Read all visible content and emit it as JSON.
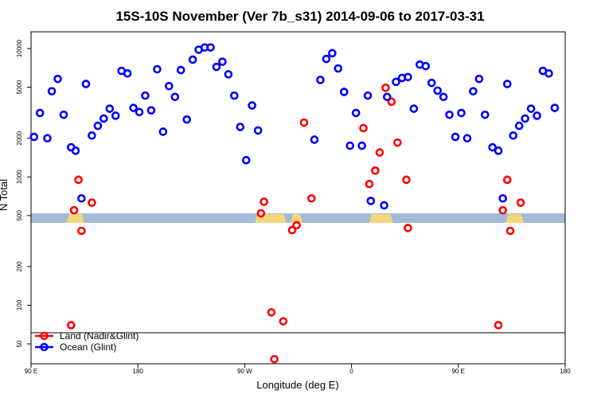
{
  "chart_data": {
    "type": "scatter",
    "title": "15S-10S November (Ver 7b_s31)   2014-09-06 to 2017-03-31",
    "xlabel": "Longitude (deg E)",
    "ylabel": "N Total",
    "y_scale": "log",
    "xlim": [
      90,
      450
    ],
    "ylim": [
      35,
      13500
    ],
    "x_ticks": [
      {
        "value": 90,
        "label": "90 E"
      },
      {
        "value": 162,
        "label": "180"
      },
      {
        "value": 234,
        "label": "90 W"
      },
      {
        "value": 306,
        "label": "0"
      },
      {
        "value": 378,
        "label": "90 E"
      },
      {
        "value": 450,
        "label": "180"
      }
    ],
    "y_ticks": [
      {
        "value": 50,
        "label": "50"
      },
      {
        "value": 100,
        "label": "100"
      },
      {
        "value": 200,
        "label": "200"
      },
      {
        "value": 500,
        "label": "500"
      },
      {
        "value": 1000,
        "label": "1000"
      },
      {
        "value": 2000,
        "label": "2000"
      },
      {
        "value": 5000,
        "label": "5000"
      },
      {
        "value": 10000,
        "label": "10000"
      }
    ],
    "grid": false,
    "legend_position": "bottom-left",
    "series": [
      {
        "name": "Land (Nadir&Glint)",
        "color": "#ff0000",
        "points": [
          [
            117,
            70
          ],
          [
            119,
            550
          ],
          [
            122,
            950
          ],
          [
            124,
            380
          ],
          [
            131,
            630
          ],
          [
            245,
            520
          ],
          [
            247,
            640
          ],
          [
            252,
            88
          ],
          [
            254,
            38
          ],
          [
            260,
            75
          ],
          [
            266,
            385
          ],
          [
            269,
            420
          ],
          [
            274,
            2650
          ],
          [
            279,
            680
          ],
          [
            314,
            2400
          ],
          [
            318,
            880
          ],
          [
            322,
            1120
          ],
          [
            325,
            1550
          ],
          [
            329,
            4950
          ],
          [
            333,
            3850
          ],
          [
            337,
            1850
          ],
          [
            343,
            950
          ],
          [
            344,
            400
          ],
          [
            405,
            70
          ],
          [
            408,
            550
          ],
          [
            411,
            950
          ],
          [
            413,
            380
          ],
          [
            420,
            630
          ]
        ]
      },
      {
        "name": "Ocean (Glint)",
        "color": "#0000ff",
        "points": [
          [
            92,
            2050
          ],
          [
            96,
            3150
          ],
          [
            101,
            2000
          ],
          [
            104,
            4650
          ],
          [
            108,
            5800
          ],
          [
            112,
            3050
          ],
          [
            117,
            1700
          ],
          [
            120,
            1600
          ],
          [
            124,
            680
          ],
          [
            127,
            5300
          ],
          [
            131,
            2100
          ],
          [
            135,
            2500
          ],
          [
            139,
            2850
          ],
          [
            143,
            3400
          ],
          [
            147,
            3000
          ],
          [
            151,
            6700
          ],
          [
            155,
            6400
          ],
          [
            159,
            3450
          ],
          [
            163,
            3200
          ],
          [
            167,
            4300
          ],
          [
            171,
            3300
          ],
          [
            175,
            6900
          ],
          [
            179,
            2250
          ],
          [
            183,
            5100
          ],
          [
            187,
            4200
          ],
          [
            191,
            6800
          ],
          [
            195,
            2800
          ],
          [
            199,
            8200
          ],
          [
            203,
            9800
          ],
          [
            207,
            10200
          ],
          [
            211,
            10200
          ],
          [
            215,
            7200
          ],
          [
            219,
            7900
          ],
          [
            223,
            6300
          ],
          [
            227,
            4300
          ],
          [
            231,
            2450
          ],
          [
            235,
            1350
          ],
          [
            239,
            3600
          ],
          [
            243,
            2300
          ],
          [
            281,
            1950
          ],
          [
            285,
            5700
          ],
          [
            289,
            8300
          ],
          [
            293,
            9200
          ],
          [
            297,
            7000
          ],
          [
            301,
            4600
          ],
          [
            305,
            1750
          ],
          [
            309,
            3150
          ],
          [
            313,
            1750
          ],
          [
            317,
            4300
          ],
          [
            319,
            650
          ],
          [
            328,
            600
          ],
          [
            330,
            4200
          ],
          [
            336,
            5500
          ],
          [
            340,
            5900
          ],
          [
            344,
            6000
          ],
          [
            348,
            3400
          ],
          [
            352,
            7500
          ],
          [
            356,
            7300
          ],
          [
            360,
            5400
          ],
          [
            364,
            4700
          ],
          [
            368,
            4200
          ],
          [
            372,
            3050
          ],
          [
            376,
            2050
          ],
          [
            380,
            3150
          ],
          [
            384,
            2000
          ],
          [
            388,
            4650
          ],
          [
            392,
            5800
          ],
          [
            396,
            3050
          ],
          [
            401,
            1700
          ],
          [
            405,
            1600
          ],
          [
            408,
            680
          ],
          [
            411,
            5300
          ],
          [
            415,
            2100
          ],
          [
            419,
            2500
          ],
          [
            423,
            2850
          ],
          [
            427,
            3400
          ],
          [
            431,
            3000
          ],
          [
            435,
            6700
          ],
          [
            439,
            6400
          ],
          [
            443,
            3450
          ]
        ]
      }
    ],
    "surface_band": {
      "ocean_color": "#a3bbd9",
      "land_color": "#f5d67a",
      "land_ranges": [
        [
          114,
          126
        ],
        [
          241,
          262
        ],
        [
          265,
          273
        ],
        [
          318,
          334
        ],
        [
          410,
          422
        ]
      ]
    }
  }
}
